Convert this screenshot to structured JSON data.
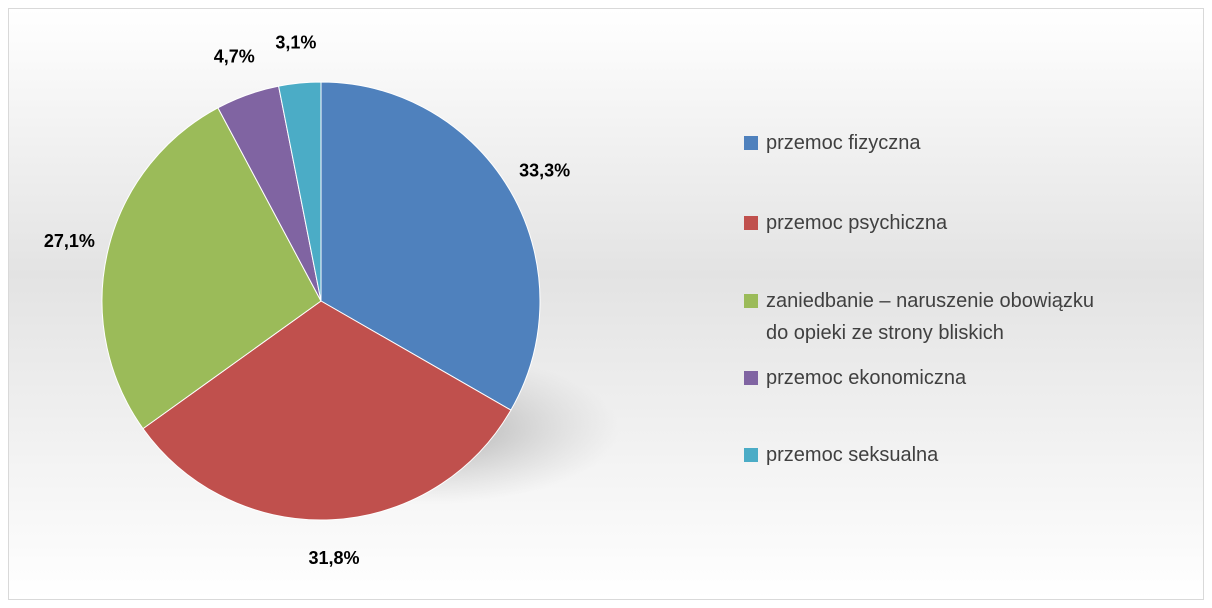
{
  "chart_data": {
    "type": "pie",
    "categories": [
      "przemoc fizyczna",
      "przemoc psychiczna",
      "zaniedbanie – naruszenie obowiązku do opieki ze strony bliskich",
      "przemoc ekonomiczna",
      "przemoc seksualna"
    ],
    "values": [
      33.3,
      31.8,
      27.1,
      4.7,
      3.1
    ],
    "value_labels": [
      "33,3%",
      "31,8%",
      "27,1%",
      "4,7%",
      "3,1%"
    ],
    "colors": [
      "#4f81bd",
      "#c0504d",
      "#9bbb59",
      "#8064a2",
      "#4bacc6"
    ],
    "legend": "right"
  }
}
